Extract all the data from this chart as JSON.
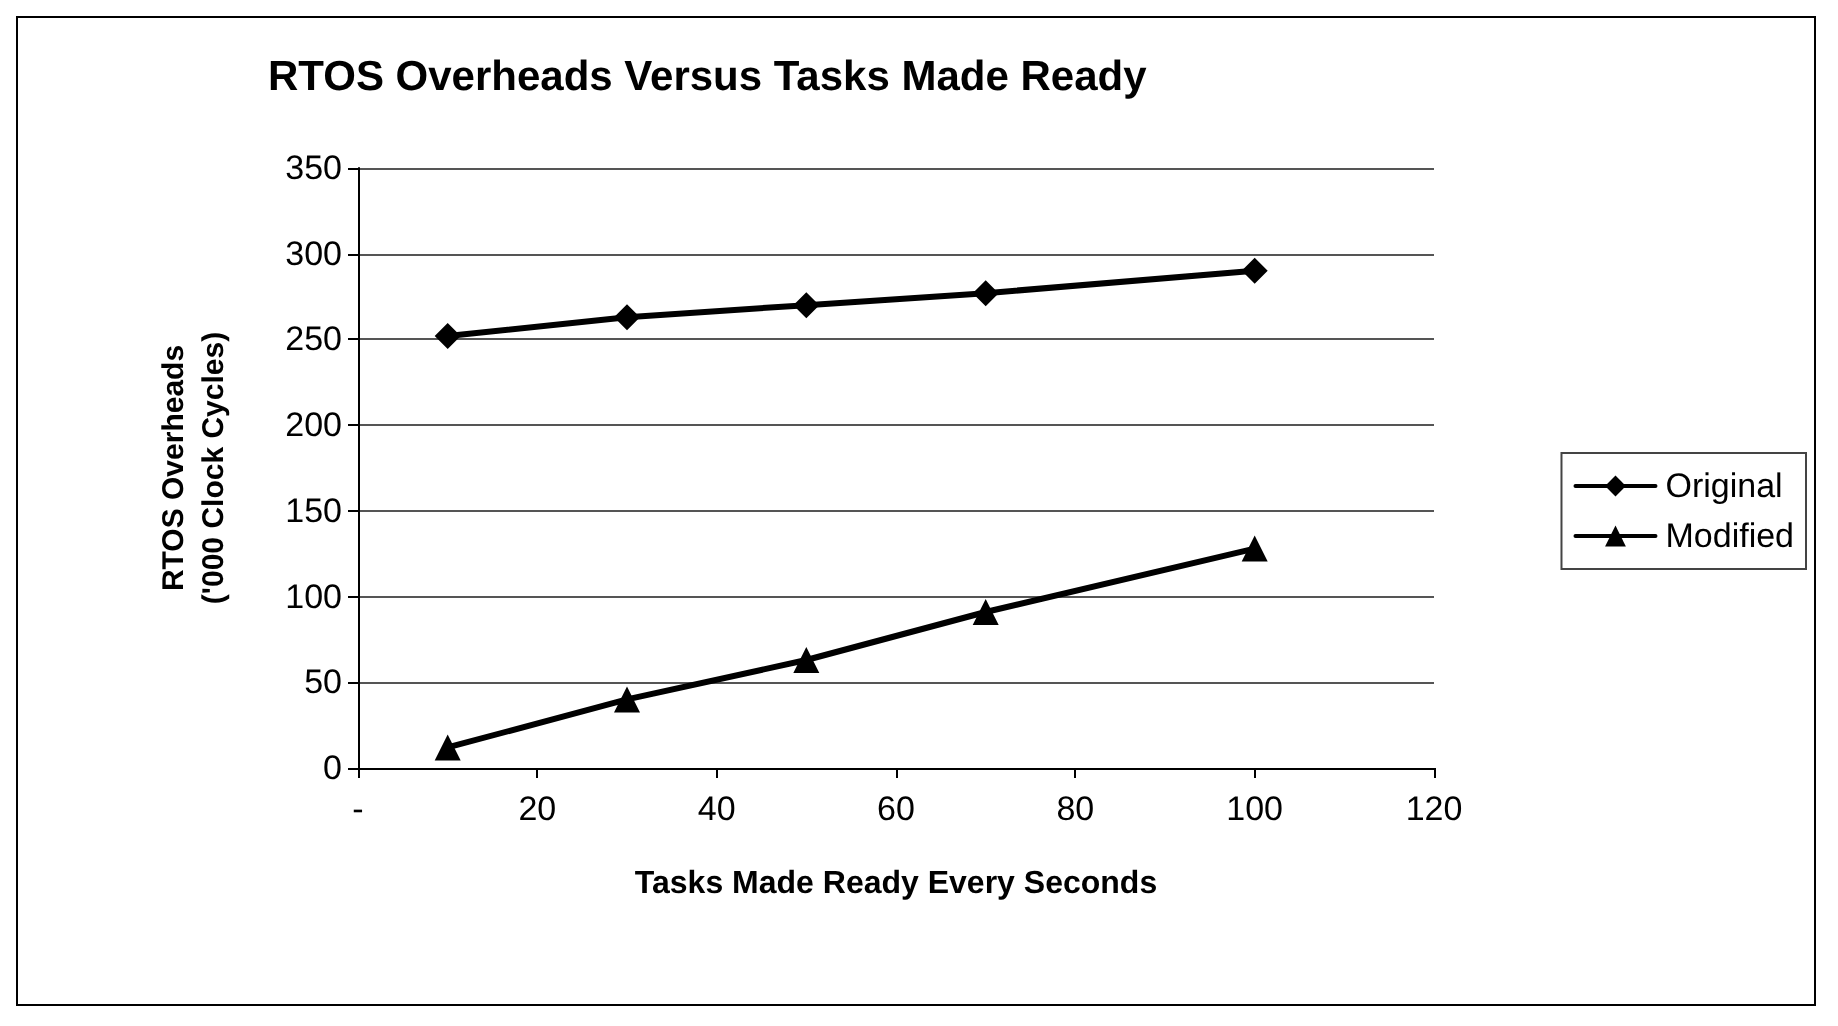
{
  "chart_data": {
    "type": "line",
    "title": "RTOS Overheads Versus Tasks Made Ready",
    "xlabel": "Tasks Made Ready Every Seconds",
    "ylabel": "RTOS Overheads\n('000 Clock Cycles)",
    "x": [
      10,
      30,
      50,
      70,
      100
    ],
    "series": [
      {
        "name": "Original",
        "color": "#000000",
        "marker": "diamond",
        "values": [
          252,
          263,
          270,
          277,
          290
        ]
      },
      {
        "name": "Modified",
        "color": "#000000",
        "marker": "triangle",
        "values": [
          12,
          40,
          63,
          91,
          128
        ]
      }
    ],
    "xlim": [
      0,
      120
    ],
    "xticks": [
      {
        "value": 0,
        "label": "-"
      },
      20,
      40,
      60,
      80,
      100,
      120
    ],
    "ylim": [
      0,
      350
    ],
    "yticks": [
      0,
      50,
      100,
      150,
      200,
      250,
      300,
      350
    ],
    "grid": "y",
    "legend": "right"
  }
}
